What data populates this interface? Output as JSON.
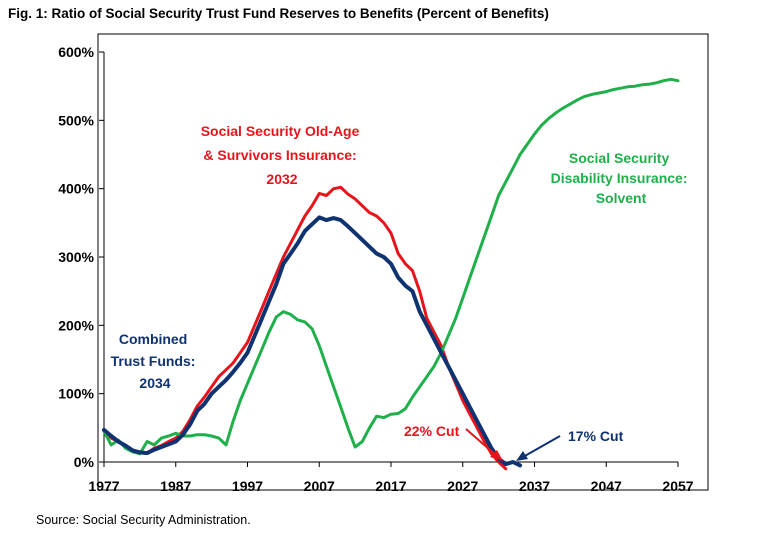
{
  "chart_data": {
    "type": "line",
    "title": "Fig. 1: Ratio of Social Security Trust Fund Reserves to Benefits (Percent of Benefits)",
    "source": "Source: Social Security Administration.",
    "xlabel": "",
    "ylabel": "",
    "xlim": [
      1977,
      2057
    ],
    "ylim": [
      0,
      600
    ],
    "x_ticks": [
      "1977",
      "1987",
      "1997",
      "2007",
      "2017",
      "2027",
      "2037",
      "2047",
      "2057"
    ],
    "y_ticks": [
      "0%",
      "100%",
      "200%",
      "300%",
      "400%",
      "500%",
      "600%"
    ],
    "grid": false,
    "series": [
      {
        "name": "Social Security Old-Age & Survivors Insurance",
        "color": "#e8141b",
        "x": [
          1977,
          1978,
          1979,
          1980,
          1981,
          1982,
          1983,
          1984,
          1985,
          1986,
          1987,
          1988,
          1989,
          1990,
          1991,
          1992,
          1993,
          1994,
          1995,
          1996,
          1997,
          1998,
          1999,
          2000,
          2001,
          2002,
          2003,
          2004,
          2005,
          2006,
          2007,
          2008,
          2009,
          2010,
          2011,
          2012,
          2013,
          2014,
          2015,
          2016,
          2017,
          2018,
          2019,
          2020,
          2021,
          2022,
          2023,
          2024,
          2025,
          2026,
          2027,
          2028,
          2029,
          2030,
          2031,
          2032,
          2033
        ],
        "y": [
          45,
          35,
          30,
          24,
          16,
          14,
          13,
          20,
          24,
          30,
          35,
          45,
          62,
          82,
          95,
          110,
          125,
          135,
          145,
          160,
          175,
          200,
          225,
          250,
          275,
          300,
          320,
          340,
          360,
          375,
          393,
          390,
          400,
          402,
          392,
          385,
          375,
          365,
          360,
          350,
          335,
          305,
          290,
          280,
          250,
          210,
          190,
          170,
          140,
          115,
          90,
          70,
          50,
          30,
          12,
          0,
          -10
        ]
      },
      {
        "name": "Social Security Disability Insurance",
        "color": "#1fb04b",
        "x": [
          1977,
          1978,
          1979,
          1980,
          1981,
          1982,
          1983,
          1984,
          1985,
          1986,
          1987,
          1988,
          1989,
          1990,
          1991,
          1992,
          1993,
          1994,
          1995,
          1996,
          1997,
          1998,
          1999,
          2000,
          2001,
          2002,
          2003,
          2004,
          2005,
          2006,
          2007,
          2008,
          2009,
          2010,
          2011,
          2012,
          2013,
          2014,
          2015,
          2016,
          2017,
          2018,
          2019,
          2020,
          2021,
          2022,
          2023,
          2024,
          2025,
          2026,
          2027,
          2028,
          2029,
          2030,
          2031,
          2032,
          2033,
          2034,
          2035,
          2036,
          2037,
          2038,
          2039,
          2040,
          2041,
          2042,
          2043,
          2044,
          2045,
          2046,
          2047,
          2048,
          2049,
          2050,
          2051,
          2052,
          2053,
          2054,
          2055,
          2056,
          2057
        ],
        "y": [
          45,
          25,
          32,
          20,
          15,
          12,
          30,
          25,
          35,
          38,
          42,
          38,
          38,
          40,
          40,
          38,
          35,
          25,
          60,
          90,
          115,
          140,
          165,
          190,
          212,
          220,
          216,
          208,
          205,
          195,
          170,
          140,
          110,
          80,
          50,
          22,
          30,
          50,
          67,
          65,
          70,
          71,
          78,
          95,
          110,
          125,
          140,
          160,
          185,
          210,
          240,
          270,
          300,
          330,
          360,
          390,
          410,
          430,
          450,
          465,
          480,
          493,
          503,
          511,
          518,
          524,
          530,
          535,
          538,
          540,
          542,
          545,
          547,
          549,
          550,
          552,
          553,
          555,
          558,
          560,
          558
        ]
      },
      {
        "name": "Combined Trust Funds",
        "color": "#0f3270",
        "x": [
          1977,
          1978,
          1979,
          1980,
          1981,
          1982,
          1983,
          1984,
          1985,
          1986,
          1987,
          1988,
          1989,
          1990,
          1991,
          1992,
          1993,
          1994,
          1995,
          1996,
          1997,
          1998,
          1999,
          2000,
          2001,
          2002,
          2003,
          2004,
          2005,
          2006,
          2007,
          2008,
          2009,
          2010,
          2011,
          2012,
          2013,
          2014,
          2015,
          2016,
          2017,
          2018,
          2019,
          2020,
          2021,
          2022,
          2023,
          2024,
          2025,
          2026,
          2027,
          2028,
          2029,
          2030,
          2031,
          2032,
          2033,
          2034,
          2035
        ],
        "y": [
          47,
          38,
          30,
          24,
          17,
          14,
          13,
          18,
          22,
          26,
          30,
          40,
          55,
          75,
          85,
          100,
          110,
          120,
          132,
          145,
          160,
          185,
          210,
          235,
          260,
          290,
          305,
          320,
          338,
          348,
          358,
          354,
          357,
          354,
          345,
          335,
          325,
          315,
          305,
          300,
          290,
          270,
          258,
          250,
          220,
          200,
          180,
          160,
          140,
          120,
          100,
          80,
          60,
          40,
          20,
          5,
          -3,
          0,
          -5
        ]
      }
    ],
    "annotations": {
      "oasi": [
        "Social Security Old-Age",
        "& Survivors Insurance:",
        "2032"
      ],
      "di": [
        "Social Security",
        "Disability Insurance:",
        "Solvent"
      ],
      "combined": [
        "Combined",
        "Trust Funds:",
        "2034"
      ],
      "oasi_cut": "22% Cut",
      "combined_cut": "17% Cut"
    }
  }
}
